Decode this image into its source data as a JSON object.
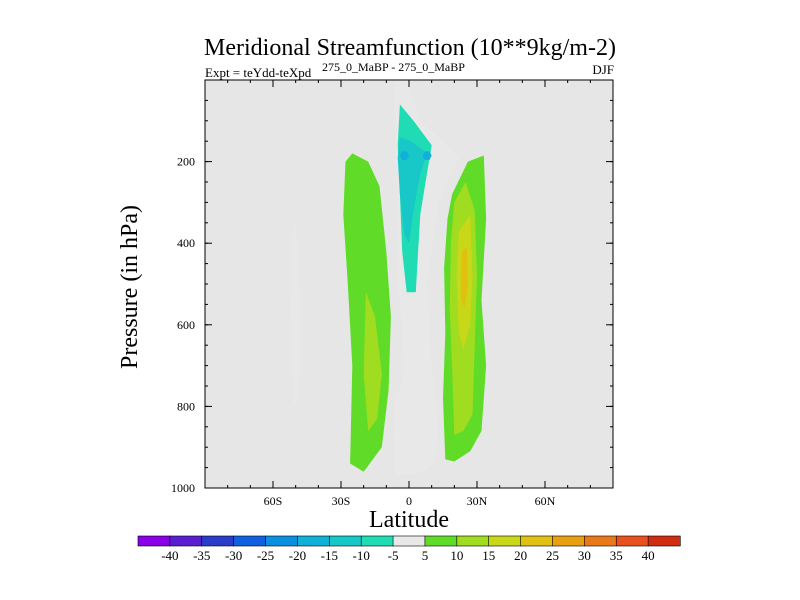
{
  "chart_data": {
    "type": "heatmap",
    "title": "Meridional Streamfunction (10**9kg/m-2)",
    "subtitle_left": "Expt = teYdd-teXpd",
    "subtitle_super": "275_0_MaBP - 275_0_MaBP",
    "subtitle_right": "DJF",
    "xlabel": "Latitude",
    "ylabel": "Pressure (in hPa)",
    "xlim": [
      -90,
      90
    ],
    "ylim": [
      1000,
      0
    ],
    "x_ticks": [
      {
        "value": -60,
        "label": "60S"
      },
      {
        "value": -30,
        "label": "30S"
      },
      {
        "value": 0,
        "label": "0"
      },
      {
        "value": 30,
        "label": "30N"
      },
      {
        "value": 60,
        "label": "60N"
      }
    ],
    "y_ticks": [
      {
        "value": 200,
        "label": "200"
      },
      {
        "value": 400,
        "label": "400"
      },
      {
        "value": 600,
        "label": "600"
      },
      {
        "value": 800,
        "label": "800"
      },
      {
        "value": 1000,
        "label": "1000"
      }
    ],
    "colorbar": {
      "levels": [
        "-40",
        "-35",
        "-30",
        "-25",
        "-20",
        "-15",
        "-10",
        "-5",
        "5",
        "10",
        "15",
        "20",
        "25",
        "30",
        "35",
        "40"
      ],
      "colors": [
        "#8a00e8",
        "#5a1ed0",
        "#2a3cc8",
        "#1060e0",
        "#0a90e0",
        "#10b0d8",
        "#18c8c8",
        "#20dcb4",
        "#e8e8e8",
        "#60dc28",
        "#a0dc20",
        "#c8d818",
        "#e0c010",
        "#e8a010",
        "#e87818",
        "#e85020",
        "#d02c10"
      ]
    },
    "regions": [
      {
        "name": "neg-5-sh-column",
        "value": -5,
        "points": [
          [
            -50,
            340
          ],
          [
            -48,
            560
          ],
          [
            -48.5,
            780
          ],
          [
            -51,
            800
          ],
          [
            -52,
            560
          ],
          [
            -51.5,
            380
          ]
        ]
      },
      {
        "name": "pos-5-sh-band",
        "value": 5,
        "points": [
          [
            -28,
            200
          ],
          [
            -25,
            180
          ],
          [
            -18,
            200
          ],
          [
            -13,
            260
          ],
          [
            -10,
            420
          ],
          [
            -8,
            580
          ],
          [
            -9,
            760
          ],
          [
            -12,
            900
          ],
          [
            -20,
            960
          ],
          [
            -26,
            940
          ],
          [
            -25,
            700
          ],
          [
            -27,
            500
          ],
          [
            -29,
            330
          ]
        ]
      },
      {
        "name": "pos-10-sh-core",
        "value": 10,
        "points": [
          [
            -19,
            520
          ],
          [
            -15,
            580
          ],
          [
            -12,
            720
          ],
          [
            -14,
            830
          ],
          [
            -18,
            860
          ],
          [
            -20,
            720
          ]
        ]
      },
      {
        "name": "neg-5-main-column",
        "value": -5,
        "points": [
          [
            -7,
            -20
          ],
          [
            0,
            -20
          ],
          [
            1,
            40
          ],
          [
            5,
            100
          ],
          [
            15,
            150
          ],
          [
            22,
            190
          ],
          [
            13,
            300
          ],
          [
            8,
            500
          ],
          [
            10,
            700
          ],
          [
            13,
            860
          ],
          [
            11,
            940
          ],
          [
            6,
            960
          ],
          [
            -6,
            970
          ],
          [
            -7,
            880
          ],
          [
            -6,
            780
          ],
          [
            -2,
            720
          ],
          [
            -3,
            620
          ],
          [
            -5,
            480
          ],
          [
            -5,
            300
          ],
          [
            -6,
            150
          ]
        ]
      },
      {
        "name": "neg-10-main-core",
        "value": -10,
        "points": [
          [
            -4,
            60
          ],
          [
            2,
            100
          ],
          [
            10,
            160
          ],
          [
            7,
            260
          ],
          [
            5,
            330
          ],
          [
            4,
            420
          ],
          [
            3,
            520
          ],
          [
            -1,
            520
          ],
          [
            -3,
            420
          ],
          [
            -4,
            280
          ],
          [
            -5,
            160
          ]
        ]
      },
      {
        "name": "neg-15-upper-core",
        "value": -15,
        "points": [
          [
            -4,
            140
          ],
          [
            1,
            150
          ],
          [
            8,
            180
          ],
          [
            5,
            230
          ],
          [
            2,
            320
          ],
          [
            0,
            400
          ],
          [
            -2,
            380
          ],
          [
            -4,
            280
          ],
          [
            -5,
            190
          ]
        ]
      },
      {
        "name": "neg-20-left-eye",
        "value": -20,
        "points": [
          [
            -3,
            175
          ],
          [
            -1,
            175
          ],
          [
            0,
            185
          ],
          [
            -1,
            196
          ],
          [
            -3,
            196
          ],
          [
            -4,
            186
          ]
        ]
      },
      {
        "name": "neg-20-right-eye",
        "value": -20,
        "points": [
          [
            7,
            175
          ],
          [
            9,
            175
          ],
          [
            10,
            185
          ],
          [
            9,
            196
          ],
          [
            7,
            196
          ],
          [
            6,
            186
          ]
        ]
      },
      {
        "name": "neg-5-surface-tail",
        "value": -5,
        "points": [
          [
            -6,
            860
          ],
          [
            -2,
            850
          ],
          [
            -3,
            900
          ],
          [
            -6,
            920
          ]
        ]
      },
      {
        "name": "pos-5-nh-band",
        "value": 5,
        "points": [
          [
            19,
            280
          ],
          [
            26,
            200
          ],
          [
            33,
            185
          ],
          [
            34,
            340
          ],
          [
            32,
            540
          ],
          [
            34,
            700
          ],
          [
            32,
            860
          ],
          [
            27,
            910
          ],
          [
            20,
            935
          ],
          [
            16,
            930
          ],
          [
            15,
            780
          ],
          [
            16,
            620
          ],
          [
            15.5,
            460
          ],
          [
            17,
            340
          ]
        ]
      },
      {
        "name": "pos-10-nh-inner",
        "value": 10,
        "points": [
          [
            20,
            300
          ],
          [
            25,
            250
          ],
          [
            29,
            320
          ],
          [
            30,
            480
          ],
          [
            29,
            650
          ],
          [
            28,
            820
          ],
          [
            24,
            860
          ],
          [
            20,
            870
          ],
          [
            19,
            700
          ],
          [
            18,
            560
          ],
          [
            18.5,
            400
          ]
        ]
      },
      {
        "name": "pos-15-nh-core",
        "value": 15,
        "points": [
          [
            22,
            370
          ],
          [
            27,
            330
          ],
          [
            28,
            480
          ],
          [
            27,
            600
          ],
          [
            24,
            660
          ],
          [
            22,
            620
          ],
          [
            21,
            480
          ]
        ]
      },
      {
        "name": "pos-20-nh-peak",
        "value": 20,
        "points": [
          [
            23.5,
            420
          ],
          [
            25.5,
            410
          ],
          [
            26,
            500
          ],
          [
            24.5,
            560
          ],
          [
            23,
            540
          ],
          [
            23,
            470
          ]
        ]
      }
    ]
  }
}
